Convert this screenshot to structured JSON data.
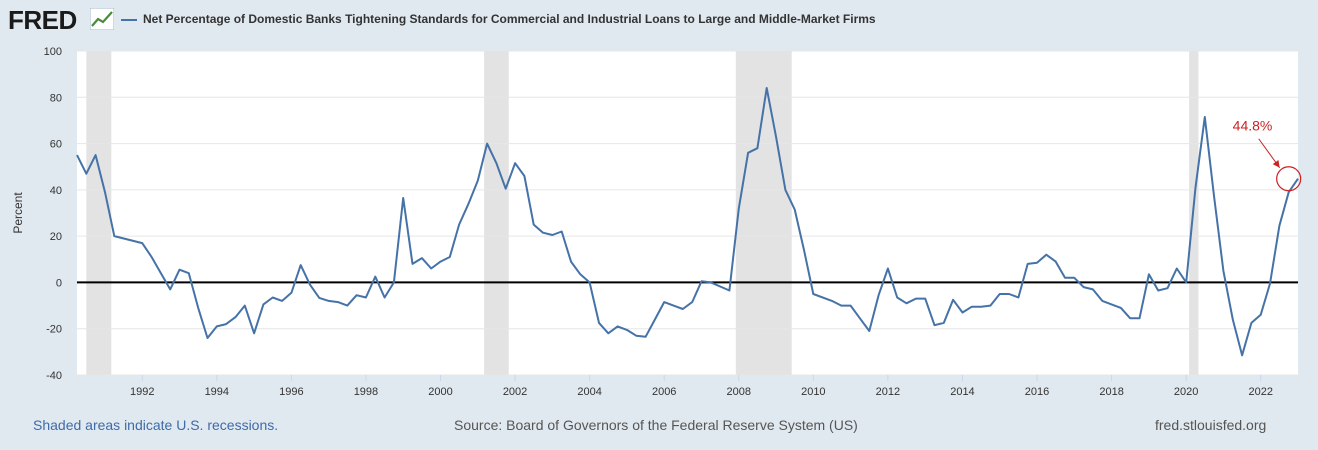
{
  "header": {
    "logo_text": "FRED",
    "chart_title": "Net Percentage of Domestic Banks Tightening Standards for Commercial and Industrial Loans to Large and Middle-Market Firms"
  },
  "footer": {
    "recession_note": "Shaded areas indicate U.S. recessions.",
    "source": "Source: Board of Governors of the Federal Reserve System (US)",
    "url": "fred.stlouisfed.org"
  },
  "colors": {
    "series": "#4572a7",
    "recession_band": "#e3e3e3",
    "annotation": "#cc2222",
    "background": "#e1e9f0"
  },
  "chart_data": {
    "type": "line",
    "title": "Net Percentage of Domestic Banks Tightening Standards for Commercial and Industrial Loans to Large and Middle-Market Firms",
    "ylabel": "Percent",
    "xlabel": "",
    "ylim": [
      -40,
      100
    ],
    "xlim": [
      1990.25,
      2023.0
    ],
    "yticks": [
      -40,
      -20,
      0,
      20,
      40,
      60,
      80,
      100
    ],
    "xticks": [
      1992,
      1994,
      1996,
      1998,
      2000,
      2002,
      2004,
      2006,
      2008,
      2010,
      2012,
      2014,
      2016,
      2018,
      2020,
      2022
    ],
    "grid": true,
    "zero_line": true,
    "recessions": [
      [
        1990.5,
        1991.17
      ],
      [
        2001.17,
        2001.83
      ],
      [
        2007.92,
        2009.42
      ],
      [
        2020.08,
        2020.33
      ]
    ],
    "annotation": {
      "text": "44.8%",
      "x": 2022.75,
      "y": 44.8
    },
    "series": [
      {
        "name": "Net Percentage of Domestic Banks Tightening Standards for Commercial and Industrial Loans to Large and Middle-Market Firms",
        "x": [
          1990.25,
          1990.5,
          1990.75,
          1991.0,
          1991.25,
          1992.0,
          1992.25,
          1992.5,
          1992.75,
          1993.0,
          1993.25,
          1993.5,
          1993.75,
          1994.0,
          1994.25,
          1994.5,
          1994.75,
          1995.0,
          1995.25,
          1995.5,
          1995.75,
          1996.0,
          1996.25,
          1996.5,
          1996.75,
          1997.0,
          1997.25,
          1997.5,
          1997.75,
          1998.0,
          1998.25,
          1998.5,
          1998.75,
          1999.0,
          1999.25,
          1999.5,
          1999.75,
          2000.0,
          2000.25,
          2000.5,
          2000.75,
          2001.0,
          2001.25,
          2001.5,
          2001.75,
          2002.0,
          2002.25,
          2002.5,
          2002.75,
          2003.0,
          2003.25,
          2003.5,
          2003.75,
          2004.0,
          2004.25,
          2004.5,
          2004.75,
          2005.0,
          2005.25,
          2005.5,
          2005.75,
          2006.0,
          2006.25,
          2006.5,
          2006.75,
          2007.0,
          2007.25,
          2007.75,
          2008.0,
          2008.25,
          2008.5,
          2008.75,
          2009.0,
          2009.25,
          2009.5,
          2009.75,
          2010.0,
          2010.5,
          2010.75,
          2011.0,
          2011.25,
          2011.5,
          2011.75,
          2012.0,
          2012.25,
          2012.5,
          2012.75,
          2013.0,
          2013.25,
          2013.5,
          2013.75,
          2014.0,
          2014.25,
          2014.5,
          2014.75,
          2015.0,
          2015.25,
          2015.5,
          2015.75,
          2016.0,
          2016.25,
          2016.5,
          2016.75,
          2017.0,
          2017.25,
          2017.5,
          2017.75,
          2018.0,
          2018.25,
          2018.5,
          2018.75,
          2019.0,
          2019.25,
          2019.5,
          2019.75,
          2020.0,
          2020.25,
          2020.5,
          2020.75,
          2021.0,
          2021.25,
          2021.5,
          2021.75,
          2022.0,
          2022.25,
          2022.5,
          2022.75,
          2023.0
        ],
        "values": [
          55,
          47,
          55,
          39,
          20,
          17,
          11,
          4,
          -3,
          5.5,
          4,
          -11,
          -24,
          -19,
          -18,
          -15,
          -10,
          -22,
          -9.5,
          -6.5,
          -8,
          -4.5,
          7.5,
          -1,
          -6.7,
          -8,
          -8.5,
          -10,
          -5.5,
          -6.5,
          2.5,
          -6.5,
          0,
          36.5,
          8,
          10.5,
          6,
          9,
          11,
          25,
          34,
          44,
          60,
          51.5,
          40.5,
          51.5,
          46,
          25,
          21.5,
          20.5,
          22,
          9,
          3.5,
          0,
          -17.5,
          -22,
          -19,
          -20.5,
          -23,
          -23.5,
          -16,
          -8.5,
          -10,
          -11.5,
          -8.5,
          0.5,
          0,
          -3.5,
          32,
          56,
          58,
          84,
          63,
          40,
          31.5,
          14,
          -5,
          -8,
          -10,
          -10,
          -15.5,
          -21,
          -5.5,
          6,
          -6.5,
          -9,
          -7,
          -7,
          -18.5,
          -17.5,
          -7.5,
          -13,
          -10.5,
          -10.5,
          -10,
          -5,
          -5,
          -6.5,
          8,
          8.5,
          12,
          9,
          2,
          2,
          -2,
          -3,
          -8,
          -9.5,
          -11,
          -15.5,
          -15.5,
          3.5,
          -3.5,
          -2.5,
          6,
          0,
          41,
          71.5,
          37,
          5,
          -16,
          -31.5,
          -17.5,
          -14,
          -0.5,
          24.5,
          39,
          44.8
        ]
      }
    ]
  }
}
